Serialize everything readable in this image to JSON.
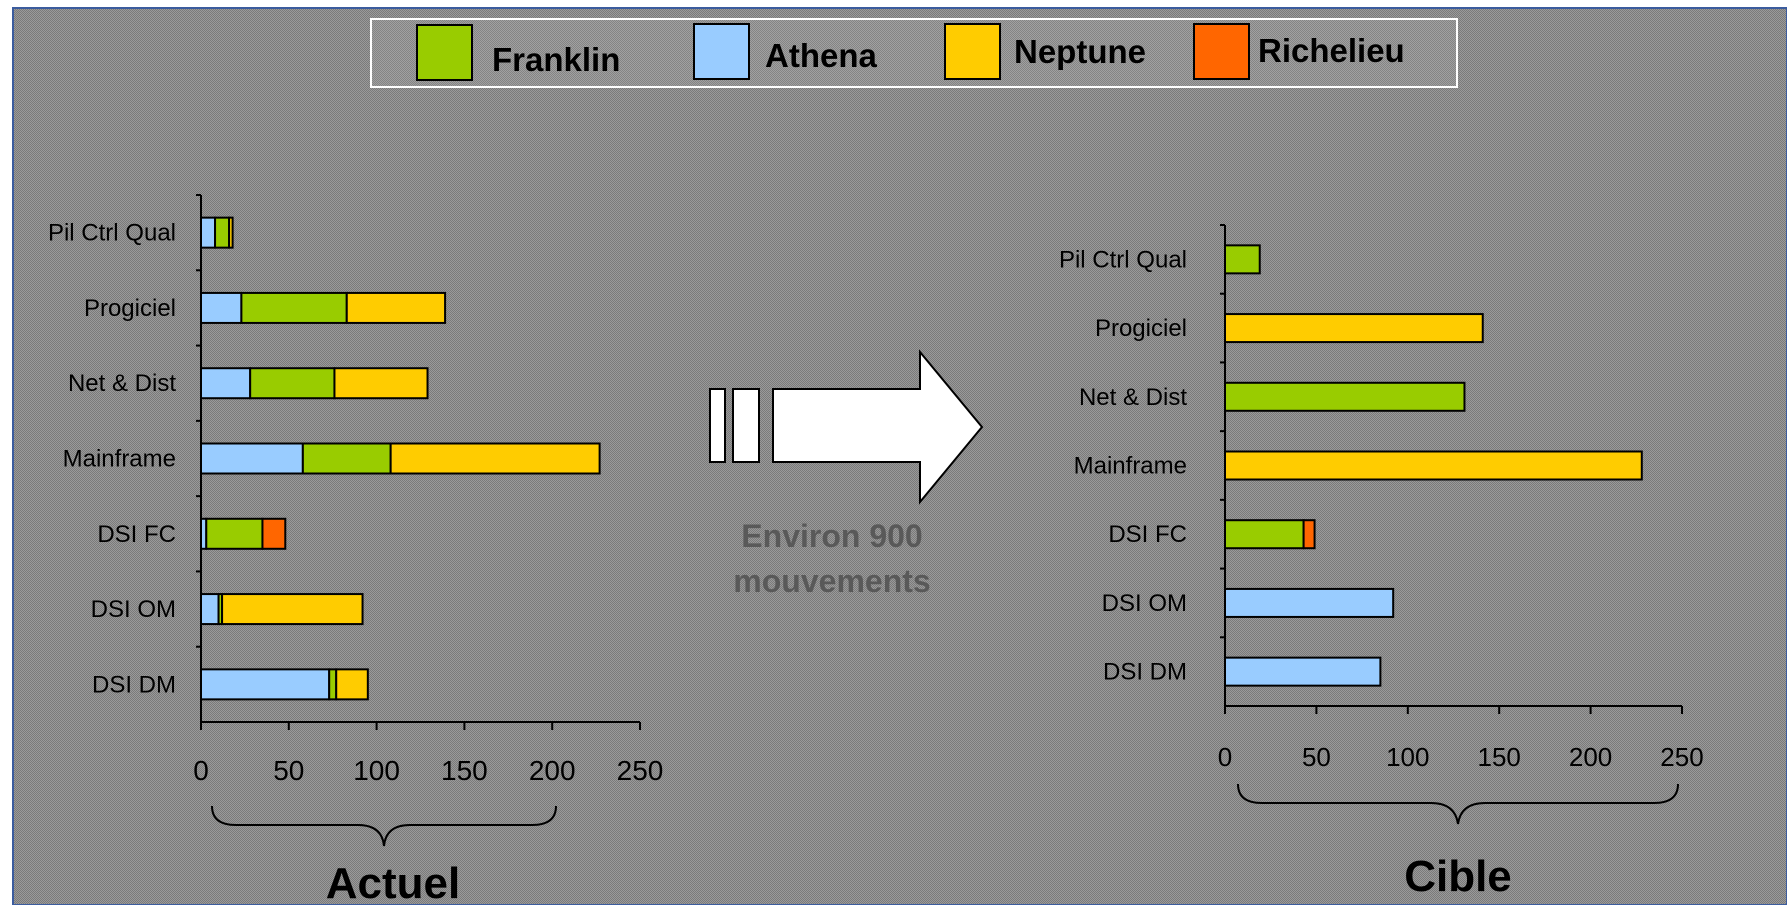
{
  "colors": {
    "frame_border": "#3b5c9e",
    "panel_bg": "#8c8c8c",
    "Franklin": "#99cc00",
    "Athena": "#99ccff",
    "Neptune": "#ffcc00",
    "Richelieu": "#ff6600",
    "arrow_fill": "#ffffff",
    "caption_text": "#595959"
  },
  "legend": {
    "items": [
      {
        "label": "Franklin",
        "color": "#99cc00"
      },
      {
        "label": "Athena",
        "color": "#99ccff"
      },
      {
        "label": "Neptune",
        "color": "#ffcc00"
      },
      {
        "label": "Richelieu",
        "color": "#ff6600"
      }
    ]
  },
  "transition": {
    "caption_line1": "Environ 900",
    "caption_line2": "mouvements"
  },
  "chart_data": [
    {
      "type": "bar",
      "orientation": "horizontal",
      "stacked": true,
      "title": "",
      "caption": "Actuel",
      "xlim": [
        0,
        250
      ],
      "ticks": [
        "0",
        "50",
        "100",
        "150",
        "200",
        "250"
      ],
      "categories": [
        "Pil Ctrl Qual",
        "Progiciel",
        "Net & Dist",
        "Mainframe",
        "DSI FC",
        "DSI OM",
        "DSI DM"
      ],
      "series": [
        {
          "name": "Athena",
          "values": [
            8,
            23,
            28,
            58,
            3,
            10,
            73
          ]
        },
        {
          "name": "Franklin",
          "values": [
            8,
            60,
            48,
            50,
            32,
            2,
            4
          ]
        },
        {
          "name": "Neptune",
          "values": [
            2,
            56,
            53,
            119,
            0,
            80,
            18
          ]
        },
        {
          "name": "Richelieu",
          "values": [
            0,
            0,
            0,
            0,
            13,
            0,
            0
          ]
        }
      ],
      "legend": "top-center",
      "grid": false
    },
    {
      "type": "bar",
      "orientation": "horizontal",
      "stacked": true,
      "title": "",
      "caption": "Cible",
      "xlim": [
        0,
        250
      ],
      "ticks": [
        "0",
        "50",
        "100",
        "150",
        "200",
        "250"
      ],
      "categories": [
        "Pil Ctrl Qual",
        "Progiciel",
        "Net & Dist",
        "Mainframe",
        "DSI FC",
        "DSI OM",
        "DSI DM"
      ],
      "series": [
        {
          "name": "Athena",
          "values": [
            0,
            0,
            0,
            0,
            0,
            92,
            85
          ]
        },
        {
          "name": "Franklin",
          "values": [
            19,
            0,
            131,
            0,
            43,
            0,
            0
          ]
        },
        {
          "name": "Neptune",
          "values": [
            0,
            141,
            0,
            228,
            0,
            0,
            0
          ]
        },
        {
          "name": "Richelieu",
          "values": [
            0,
            0,
            0,
            0,
            6,
            0,
            0
          ]
        }
      ],
      "legend": "top-center",
      "grid": false
    }
  ]
}
